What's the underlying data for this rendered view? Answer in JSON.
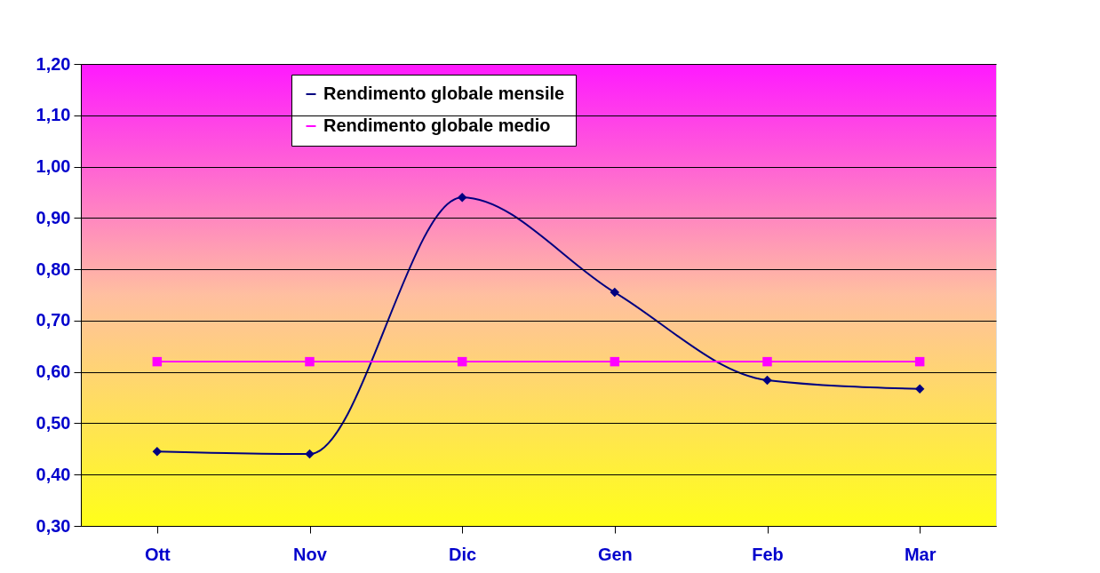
{
  "chart_data": {
    "type": "line",
    "categories": [
      "Ott",
      "Nov",
      "Dic",
      "Gen",
      "Feb",
      "Mar"
    ],
    "series": [
      {
        "name": "Rendimento globale mensile",
        "color": "#000080",
        "marker": "diamond",
        "values": [
          0.445,
          0.44,
          0.94,
          0.755,
          0.584,
          0.567
        ]
      },
      {
        "name": "Rendimento globale medio",
        "color": "#ff00ff",
        "marker": "square",
        "values": [
          0.62,
          0.62,
          0.62,
          0.62,
          0.62,
          0.62
        ]
      }
    ],
    "ylim": [
      0.3,
      1.2
    ],
    "yticks": [
      {
        "value": 0.3,
        "label": "0,30"
      },
      {
        "value": 0.4,
        "label": "0,40"
      },
      {
        "value": 0.5,
        "label": "0,50"
      },
      {
        "value": 0.6,
        "label": "0,60"
      },
      {
        "value": 0.7,
        "label": "0,70"
      },
      {
        "value": 0.8,
        "label": "0,80"
      },
      {
        "value": 0.9,
        "label": "0,90"
      },
      {
        "value": 1.0,
        "label": "1,00"
      },
      {
        "value": 1.1,
        "label": "1,10"
      },
      {
        "value": 1.2,
        "label": "1,20"
      }
    ],
    "grid": "y",
    "legend": "top",
    "line_style": "solid"
  }
}
